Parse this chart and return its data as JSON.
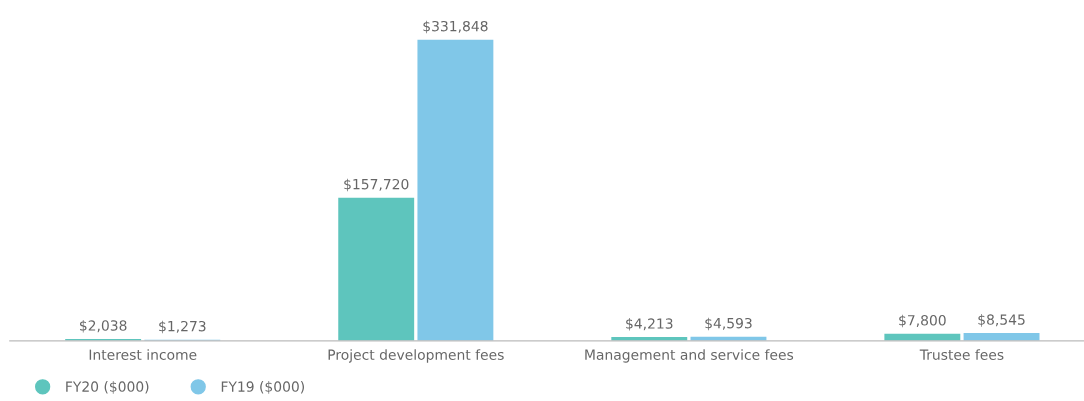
{
  "chart_data": {
    "type": "bar",
    "categories": [
      "Interest income",
      "Project development fees",
      "Management and service fees",
      "Trustee fees"
    ],
    "series": [
      {
        "name": "FY20 ($000)",
        "color": "#5ec5bd",
        "values": [
          2038,
          157720,
          4213,
          7800
        ],
        "value_labels": [
          "$2,038",
          "$157,720",
          "$4,213",
          "$7,800"
        ]
      },
      {
        "name": "FY19 ($000)",
        "color": "#80c7e8",
        "values": [
          1273,
          331848,
          4593,
          8545
        ],
        "value_labels": [
          "$1,273",
          "$331,848",
          "$4,593",
          "$8,545"
        ]
      }
    ],
    "legend": "bottom left",
    "grid": false
  }
}
